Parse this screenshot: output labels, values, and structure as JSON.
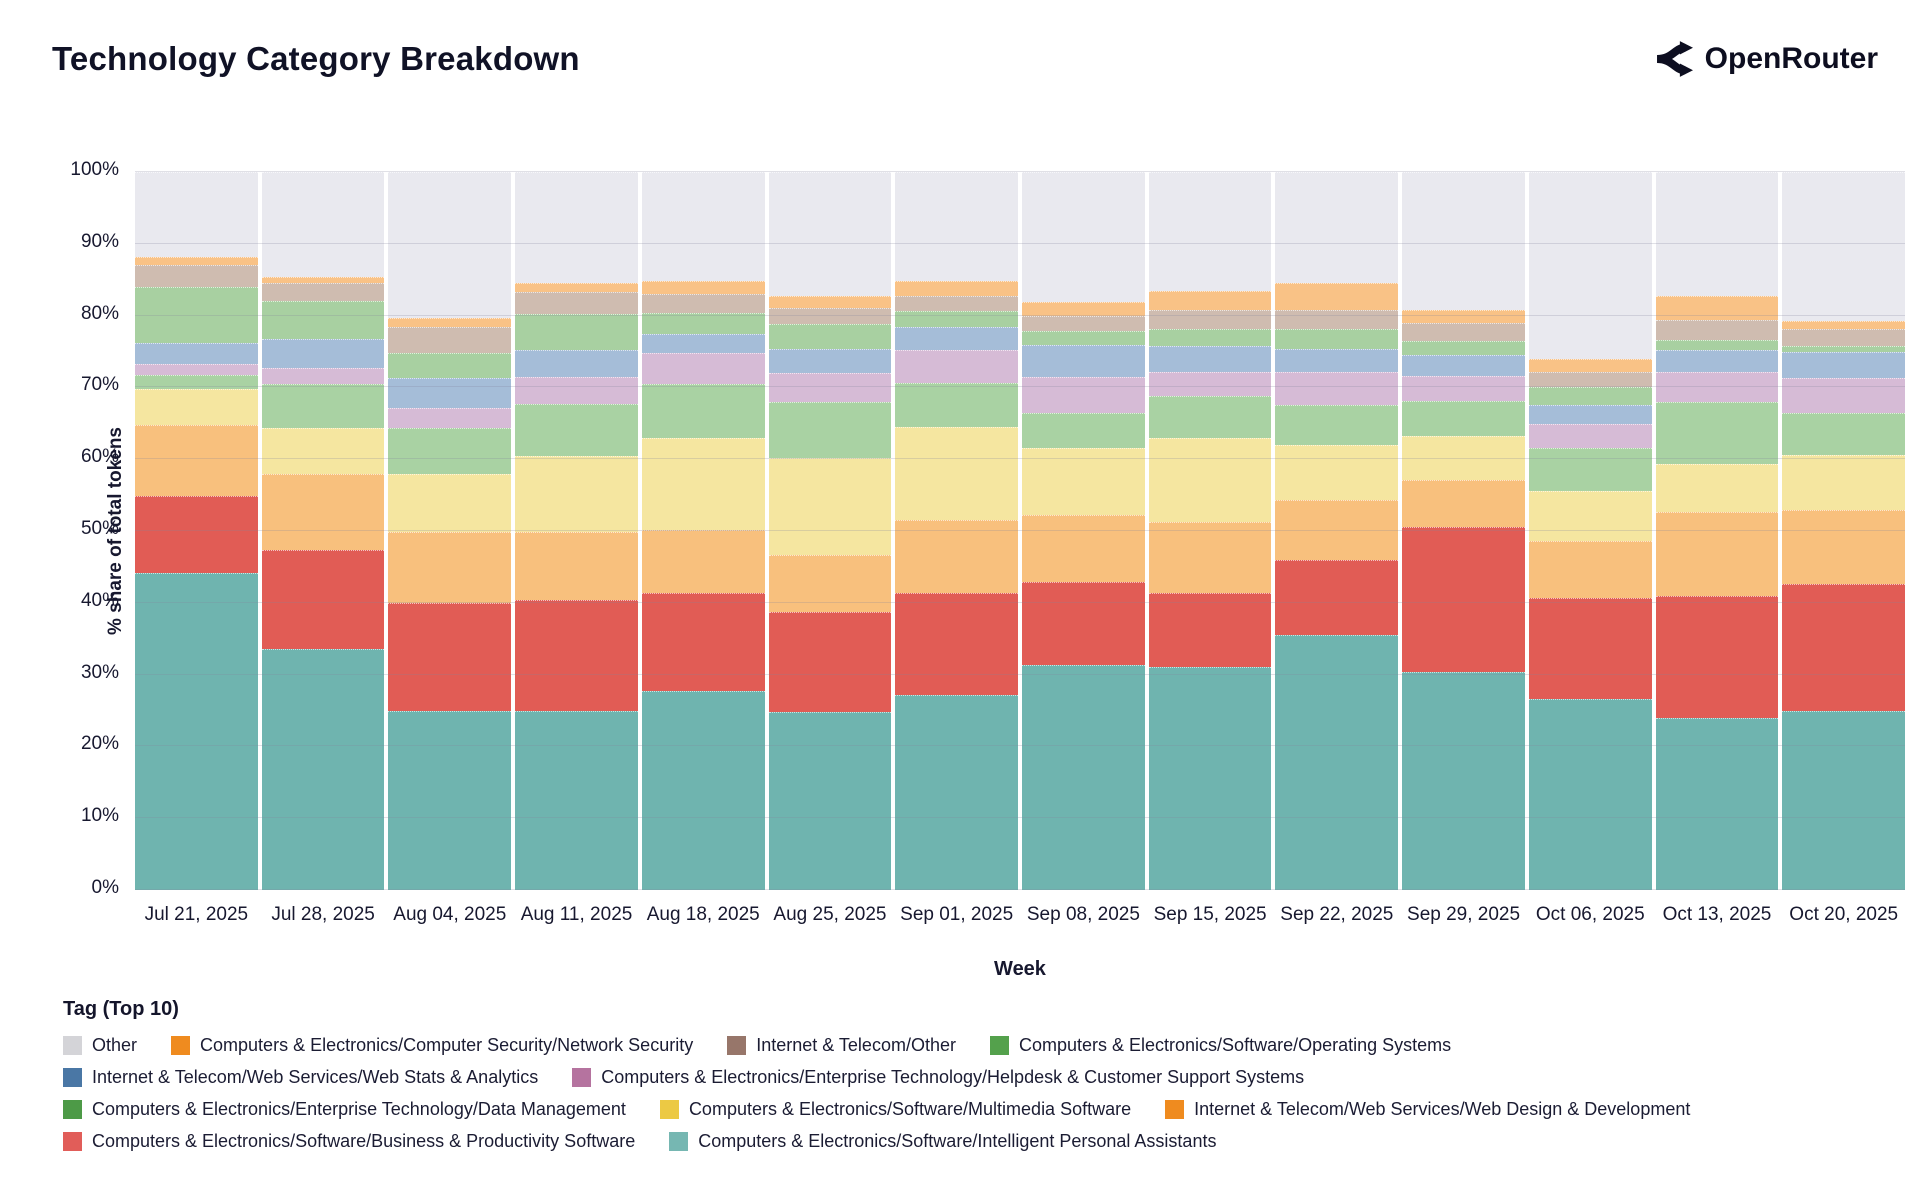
{
  "header": {
    "title": "Technology Category Breakdown",
    "brand": "OpenRouter"
  },
  "axes": {
    "y_title": "% share of total tokens",
    "x_title": "Week",
    "y_ticks": [
      "0%",
      "10%",
      "20%",
      "30%",
      "40%",
      "50%",
      "60%",
      "70%",
      "80%",
      "90%",
      "100%"
    ]
  },
  "legend": {
    "title": "Tag (Top 10)",
    "rows": [
      [
        {
          "label": "Other",
          "color": "#d4d4d8",
          "textured": false
        },
        {
          "label": "Computers & Electronics/Computer Security/Network Security",
          "color": "#ef8b1f",
          "textured": false
        },
        {
          "label": "Internet & Telecom/Other",
          "color": "#97766a",
          "textured": true
        },
        {
          "label": "Computers & Electronics/Software/Operating Systems",
          "color": "#54a14c",
          "textured": false
        }
      ],
      [
        {
          "label": "Internet & Telecom/Web Services/Web Stats & Analytics",
          "color": "#4a77a5",
          "textured": false
        },
        {
          "label": "Computers & Electronics/Enterprise Technology/Helpdesk & Customer Support Systems",
          "color": "#b5739f",
          "textured": false
        }
      ],
      [
        {
          "label": "Computers & Electronics/Enterprise Technology/Data Management",
          "color": "#4d9a47",
          "textured": false
        },
        {
          "label": "Computers & Electronics/Software/Multimedia Software",
          "color": "#ecc944",
          "textured": false
        },
        {
          "label": "Internet & Telecom/Web Services/Web Design & Development",
          "color": "#ef8b1f",
          "textured": false
        }
      ],
      [
        {
          "label": "Computers & Electronics/Software/Business & Productivity Software",
          "color": "#e15d59",
          "textured": false
        },
        {
          "label": "Computers & Electronics/Software/Intelligent Personal Assistants",
          "color": "#76b7b2",
          "textured": false
        }
      ]
    ]
  },
  "chart_data": {
    "type": "bar",
    "stacked": true,
    "normalized": true,
    "title": "Technology Category Breakdown",
    "xlabel": "Week",
    "ylabel": "% share of total tokens",
    "ylim": [
      0,
      100
    ],
    "grid": true,
    "legend_position": "bottom",
    "categories": [
      "Jul 21, 2025",
      "Jul 28, 2025",
      "Aug 04, 2025",
      "Aug 11, 2025",
      "Aug 18, 2025",
      "Aug 25, 2025",
      "Sep 01, 2025",
      "Sep 08, 2025",
      "Sep 15, 2025",
      "Sep 22, 2025",
      "Sep 29, 2025",
      "Oct 06, 2025",
      "Oct 13, 2025",
      "Oct 20, 2025"
    ],
    "series_note": "bottom-to-top stack order; values are % share of total tokens per week",
    "series": [
      {
        "name": "Computers & Electronics/Software/Intelligent Personal Assistants",
        "bar_color": "#6fb4af",
        "values": [
          44.1,
          33.6,
          24.9,
          25.0,
          27.7,
          24.8,
          27.2,
          31.3,
          31.0,
          35.5,
          30.4,
          26.6,
          24.0,
          24.9
        ]
      },
      {
        "name": "Computers & Electronics/Software/Business & Productivity Software",
        "bar_color": "#e15c55",
        "values": [
          10.8,
          13.8,
          15.1,
          15.4,
          13.6,
          13.9,
          14.1,
          11.6,
          10.3,
          10.4,
          20.1,
          14.1,
          16.9,
          17.7
        ]
      },
      {
        "name": "Internet & Telecom/Web Services/Web Design & Development",
        "bar_color": "#f8c07d",
        "values": [
          9.8,
          10.6,
          9.9,
          9.5,
          8.9,
          7.9,
          10.3,
          9.3,
          9.9,
          8.4,
          6.6,
          7.9,
          11.7,
          10.3
        ]
      },
      {
        "name": "Computers & Electronics/Software/Multimedia Software",
        "bar_color": "#f5e6a0",
        "values": [
          5.1,
          6.4,
          8.0,
          10.5,
          12.7,
          13.6,
          12.9,
          9.3,
          11.8,
          7.7,
          6.2,
          7.0,
          6.7,
          7.7
        ]
      },
      {
        "name": "Computers & Electronics/Enterprise Technology/Data Management",
        "bar_color": "#a9d2a3",
        "values": [
          1.9,
          6.1,
          6.4,
          7.3,
          7.6,
          7.8,
          6.1,
          5.0,
          5.8,
          5.6,
          4.8,
          6.0,
          8.7,
          5.8
        ]
      },
      {
        "name": "Computers & Electronics/Enterprise Technology/Helpdesk & Customer Support Systems",
        "bar_color": "#d6bbd6",
        "values": [
          1.6,
          2.2,
          2.9,
          3.7,
          4.3,
          4.0,
          4.6,
          5.0,
          3.3,
          4.5,
          3.5,
          3.3,
          4.1,
          4.9
        ]
      },
      {
        "name": "Internet & Telecom/Web Services/Web Stats & Analytics",
        "bar_color": "#a5bdd8",
        "values": [
          2.9,
          4.1,
          4.1,
          3.8,
          2.7,
          3.4,
          3.2,
          4.4,
          3.7,
          3.2,
          2.9,
          2.7,
          3.1,
          3.7
        ]
      },
      {
        "name": "Computers & Electronics/Software/Operating Systems",
        "bar_color": "#a8d0a1",
        "values": [
          7.8,
          5.2,
          3.5,
          5.1,
          2.9,
          3.5,
          2.3,
          1.9,
          2.4,
          2.8,
          2.0,
          2.5,
          1.4,
          0.8
        ]
      },
      {
        "name": "Internet & Telecom/Other",
        "bar_color": "#cfbcb0",
        "values": [
          3.1,
          2.6,
          3.6,
          3.0,
          2.6,
          2.1,
          2.1,
          2.1,
          2.6,
          2.7,
          2.5,
          2.0,
          2.8,
          2.3
        ]
      },
      {
        "name": "Computers & Electronics/Computer Security/Network Security",
        "bar_color": "#f9c286",
        "values": [
          1.1,
          0.8,
          1.3,
          1.3,
          1.9,
          1.7,
          2.1,
          2.0,
          2.6,
          3.7,
          1.8,
          1.8,
          3.3,
          1.2
        ]
      },
      {
        "name": "Other",
        "bar_color": "#e9e9ef",
        "values": [
          11.8,
          14.6,
          20.3,
          15.4,
          15.1,
          17.3,
          15.1,
          18.1,
          16.6,
          15.5,
          19.2,
          26.1,
          17.3,
          20.7
        ]
      }
    ]
  }
}
